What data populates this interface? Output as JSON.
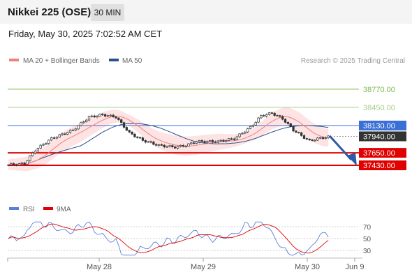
{
  "header": {
    "title": "Nikkei 225 (OSE)",
    "timeframe": "30 MIN"
  },
  "datetime": "Friday, May 30, 2025 7:02:52 AM CET",
  "legend": {
    "ma20": {
      "label": "MA 20 + Bollinger Bands",
      "color": "#f08080"
    },
    "ma50": {
      "label": "MA 50",
      "color": "#2c4f8c"
    }
  },
  "credit": "Research © 2025 Trading Central",
  "price_levels": [
    {
      "value": "38770.00",
      "kind": "target",
      "color": "#7ab648"
    },
    {
      "value": "38450.00",
      "kind": "target",
      "color": "#a8cc8a"
    },
    {
      "value": "38130.00",
      "kind": "pivot",
      "color": "#3a6fd8"
    },
    {
      "value": "37940.00",
      "kind": "last",
      "color": "#333333"
    },
    {
      "value": "37650.00",
      "kind": "support",
      "color": "#e00000"
    },
    {
      "value": "37430.00",
      "kind": "support",
      "color": "#e00000"
    }
  ],
  "rsi_legend": {
    "rsi": {
      "label": "RSI",
      "color": "#5b7fd6"
    },
    "ma9": {
      "label": "9MA",
      "color": "#e00000"
    }
  },
  "rsi_levels": [
    "70",
    "50",
    "30"
  ],
  "x_axis": [
    "May 28",
    "May 29",
    "May 30",
    "Jun 9"
  ]
}
